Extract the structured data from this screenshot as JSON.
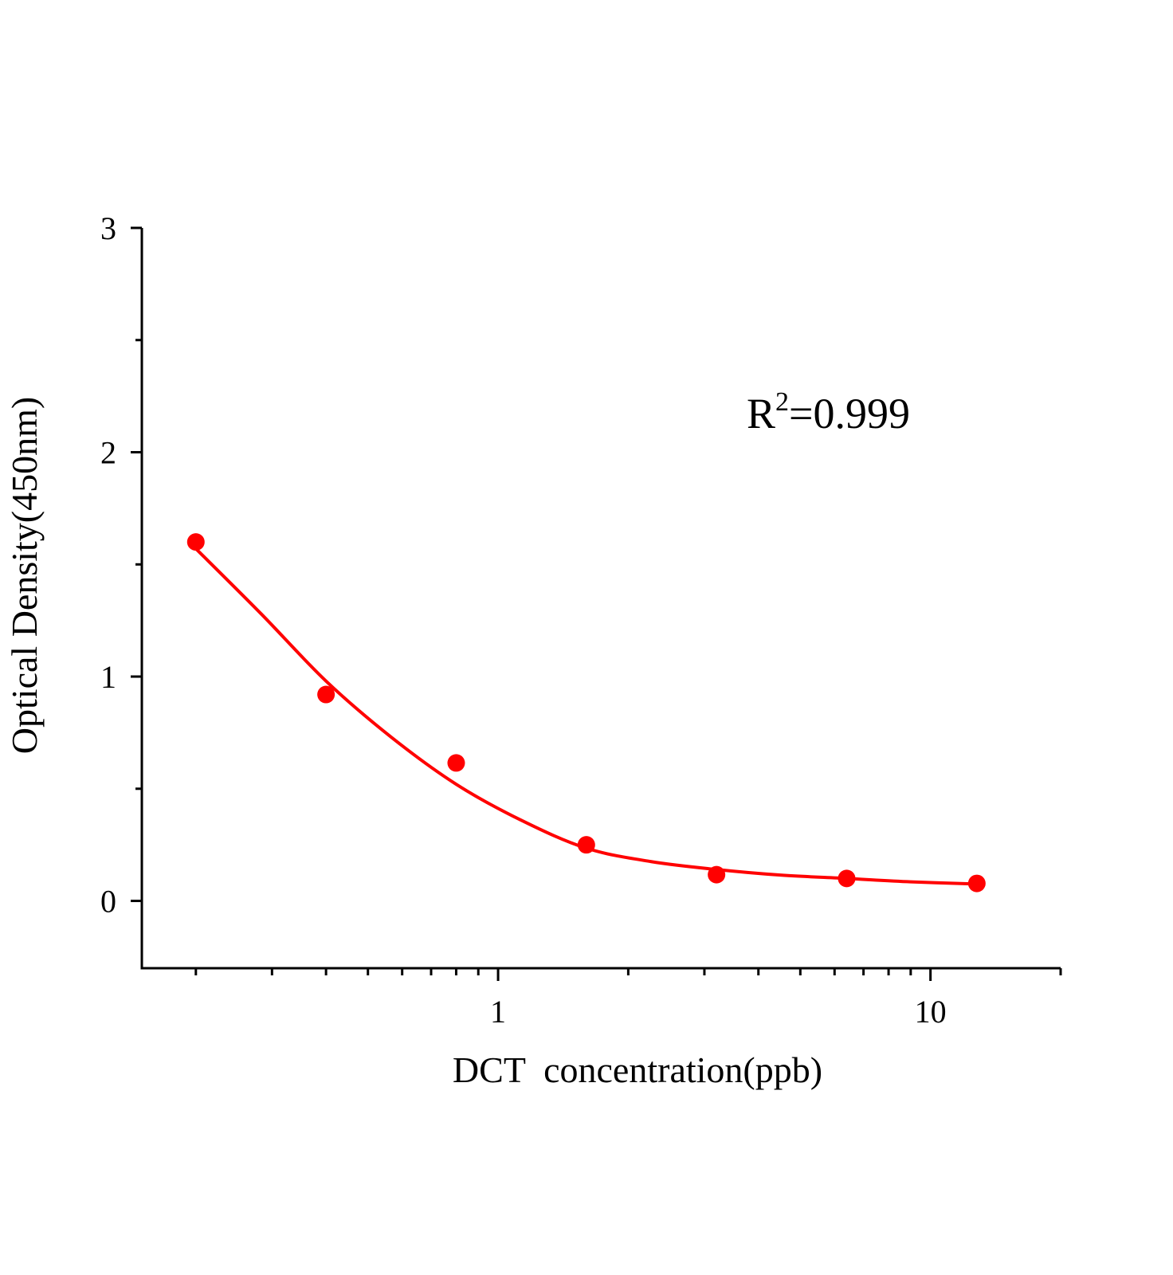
{
  "chart_data": {
    "type": "scatter",
    "title": "",
    "xlabel": "DCT  concentration(ppb)",
    "ylabel": "Optical Density(450nm)",
    "x_scale": "log",
    "xlim": [
      0.15,
      20
    ],
    "ylim": [
      -0.3,
      3
    ],
    "x_ticks": [
      {
        "value": 1,
        "label": "1"
      },
      {
        "value": 10,
        "label": "10"
      }
    ],
    "y_ticks": [
      {
        "value": 0,
        "label": "0"
      },
      {
        "value": 1,
        "label": "1"
      },
      {
        "value": 2,
        "label": "2"
      },
      {
        "value": 3,
        "label": "3"
      }
    ],
    "grid": false,
    "annotation": {
      "base": "R",
      "sup": "2",
      "rest": "=0.999"
    },
    "color": "#ff0000",
    "series": [
      {
        "x": [
          0.2,
          0.4,
          0.8,
          1.6,
          3.2,
          6.4,
          12.8
        ],
        "y": [
          1.6,
          0.92,
          0.615,
          0.25,
          0.117,
          0.1,
          0.078
        ]
      }
    ],
    "fit_curve": {
      "x": [
        0.2,
        0.283,
        0.4,
        0.566,
        0.8,
        1.13,
        1.6,
        2.26,
        3.2,
        4.5,
        6.4,
        9,
        12.8
      ],
      "y": [
        1.57,
        1.28,
        0.98,
        0.73,
        0.52,
        0.36,
        0.235,
        0.175,
        0.14,
        0.115,
        0.1,
        0.085,
        0.075
      ]
    }
  }
}
